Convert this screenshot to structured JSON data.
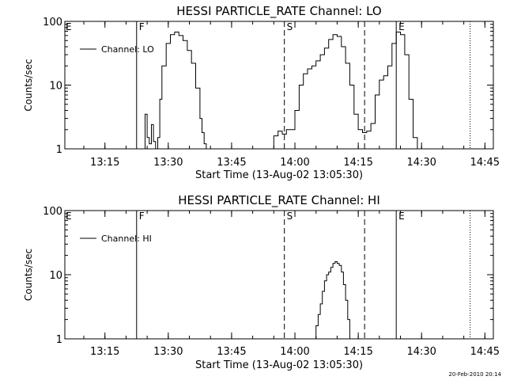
{
  "chart_data": [
    {
      "type": "line",
      "title": "HESSI PARTICLE_RATE Channel: LO",
      "xlabel": "Start Time (13-Aug-02 13:05:30)",
      "ylabel": "Counts/sec",
      "yscale": "log",
      "ylim": [
        1,
        100
      ],
      "xlim": [
        "13:05:30",
        "14:47:00"
      ],
      "x_ticks": [
        "13:15",
        "13:30",
        "13:45",
        "14:00",
        "14:15",
        "14:30",
        "14:45"
      ],
      "y_ticks": [
        "1",
        "10",
        "100"
      ],
      "grid": false,
      "legend": {
        "position": "top-left",
        "entries": [
          "Channel: LO"
        ]
      },
      "markers": [
        {
          "label": "F",
          "time": "13:22:30",
          "style": "solid"
        },
        {
          "label": "S",
          "time": "13:57:30",
          "style": "dashed"
        },
        {
          "label": "",
          "time": "14:16:30",
          "style": "dashed"
        },
        {
          "label": "E",
          "time": "14:24:00",
          "style": "solid"
        },
        {
          "label": "",
          "time": "14:41:30",
          "style": "dotted"
        }
      ],
      "corner_label": "E",
      "series": [
        {
          "name": "Channel: LO",
          "x": [
            "13:22:30",
            "13:24:00",
            "13:24:30",
            "13:25:00",
            "13:25:30",
            "13:26:00",
            "13:26:30",
            "13:27:00",
            "13:27:30",
            "13:28:00",
            "13:28:30",
            "13:29:30",
            "13:30:30",
            "13:31:30",
            "13:32:30",
            "13:33:30",
            "13:34:30",
            "13:35:30",
            "13:36:30",
            "13:37:30",
            "13:38:00",
            "13:38:30",
            "13:39:00",
            "13:39:30",
            "13:53:30",
            "13:55:00",
            "13:56:00",
            "13:57:00",
            "13:58:00",
            "13:59:00",
            "14:00:00",
            "14:01:00",
            "14:02:00",
            "14:03:00",
            "14:04:00",
            "14:05:00",
            "14:06:00",
            "14:07:00",
            "14:08:00",
            "14:09:00",
            "14:10:00",
            "14:11:00",
            "14:12:00",
            "14:13:00",
            "14:14:00",
            "14:15:00",
            "14:16:00",
            "14:17:00",
            "14:18:00",
            "14:19:00",
            "14:20:00",
            "14:21:00",
            "14:22:00",
            "14:23:00",
            "14:24:00",
            "14:25:00",
            "14:26:00",
            "14:27:00",
            "14:28:00",
            "14:29:00"
          ],
          "y": [
            1,
            1,
            3.5,
            1.5,
            1.2,
            2.4,
            1.3,
            1,
            1.5,
            6,
            20,
            45,
            62,
            68,
            60,
            50,
            35,
            22,
            9,
            3,
            1.8,
            1.2,
            1,
            1,
            1,
            1.6,
            1.9,
            1.7,
            2,
            2,
            4,
            10,
            15,
            18,
            20,
            24,
            30,
            38,
            52,
            62,
            58,
            40,
            22,
            10,
            3.5,
            2,
            1.8,
            1.9,
            2.5,
            7,
            12,
            14,
            20,
            45,
            68,
            62,
            30,
            6,
            1.5,
            1
          ]
        }
      ]
    },
    {
      "type": "line",
      "title": "HESSI PARTICLE_RATE Channel: HI",
      "xlabel": "Start Time (13-Aug-02 13:05:30)",
      "ylabel": "Counts/sec",
      "yscale": "log",
      "ylim": [
        1,
        100
      ],
      "xlim": [
        "13:05:30",
        "14:47:00"
      ],
      "x_ticks": [
        "13:15",
        "13:30",
        "13:45",
        "14:00",
        "14:15",
        "14:30",
        "14:45"
      ],
      "y_ticks": [
        "1",
        "10",
        "100"
      ],
      "grid": false,
      "legend": {
        "position": "top-left",
        "entries": [
          "Channel: HI"
        ]
      },
      "markers": [
        {
          "label": "F",
          "time": "13:22:30",
          "style": "solid"
        },
        {
          "label": "S",
          "time": "13:57:30",
          "style": "dashed"
        },
        {
          "label": "",
          "time": "14:16:30",
          "style": "dashed"
        },
        {
          "label": "E",
          "time": "14:24:00",
          "style": "solid"
        },
        {
          "label": "",
          "time": "14:41:30",
          "style": "dotted"
        }
      ],
      "corner_label": "E",
      "series": [
        {
          "name": "Channel: HI",
          "x": [
            "14:04:00",
            "14:05:00",
            "14:05:30",
            "14:06:00",
            "14:06:30",
            "14:07:00",
            "14:07:30",
            "14:08:00",
            "14:08:30",
            "14:09:00",
            "14:09:30",
            "14:10:00",
            "14:10:30",
            "14:11:00",
            "14:11:30",
            "14:12:00",
            "14:12:30",
            "14:13:00"
          ],
          "y": [
            1,
            1.6,
            2.4,
            3.5,
            5.5,
            8,
            10,
            11,
            13,
            15,
            16,
            15,
            14,
            11,
            7,
            4,
            2,
            1
          ]
        }
      ]
    }
  ],
  "footer": {
    "timestamp": "20-Feb-2010 20:14"
  }
}
